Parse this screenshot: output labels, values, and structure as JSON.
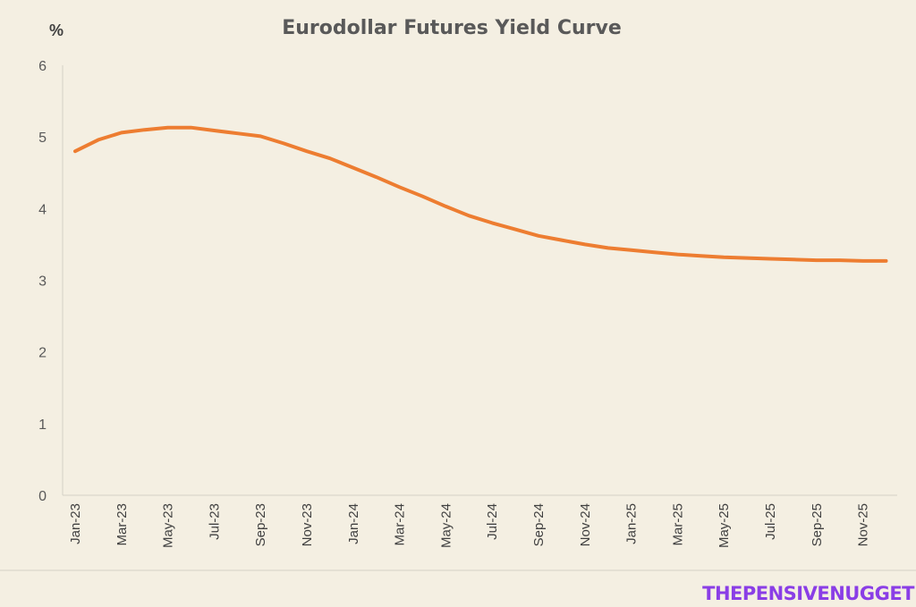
{
  "chart_data": {
    "type": "line",
    "title": "Eurodollar Futures Yield Curve",
    "y_unit_label": "%",
    "ylim": [
      0,
      6
    ],
    "yticks": [
      0,
      1,
      2,
      3,
      4,
      5,
      6
    ],
    "grid": false,
    "legend": "none",
    "x_tick_labels": [
      "Jan-23",
      "Mar-23",
      "May-23",
      "Jul-23",
      "Sep-23",
      "Nov-23",
      "Jan-24",
      "Mar-24",
      "May-24",
      "Jul-24",
      "Sep-24",
      "Nov-24",
      "Jan-25",
      "Mar-25",
      "May-25",
      "Jul-25",
      "Sep-25",
      "Nov-25"
    ],
    "x": [
      "Jan-23",
      "Feb-23",
      "Mar-23",
      "Apr-23",
      "May-23",
      "Jun-23",
      "Jul-23",
      "Aug-23",
      "Sep-23",
      "Oct-23",
      "Nov-23",
      "Dec-23",
      "Jan-24",
      "Feb-24",
      "Mar-24",
      "Apr-24",
      "May-24",
      "Jun-24",
      "Jul-24",
      "Aug-24",
      "Sep-24",
      "Oct-24",
      "Nov-24",
      "Dec-24",
      "Jan-25",
      "Feb-25",
      "Mar-25",
      "Apr-25",
      "May-25",
      "Jun-25",
      "Jul-25",
      "Aug-25",
      "Sep-25",
      "Oct-25",
      "Nov-25",
      "Dec-25"
    ],
    "series": [
      {
        "color": "#ed7d31",
        "values": [
          4.8,
          4.96,
          5.06,
          5.1,
          5.13,
          5.13,
          5.09,
          5.05,
          5.01,
          4.91,
          4.8,
          4.7,
          4.57,
          4.44,
          4.3,
          4.17,
          4.03,
          3.9,
          3.8,
          3.71,
          3.62,
          3.56,
          3.5,
          3.45,
          3.42,
          3.39,
          3.36,
          3.34,
          3.32,
          3.31,
          3.3,
          3.29,
          3.28,
          3.28,
          3.27,
          3.27
        ]
      }
    ]
  },
  "watermark": {
    "text": "THEPENSIVENUGGET",
    "color": "#8a3ee6"
  }
}
